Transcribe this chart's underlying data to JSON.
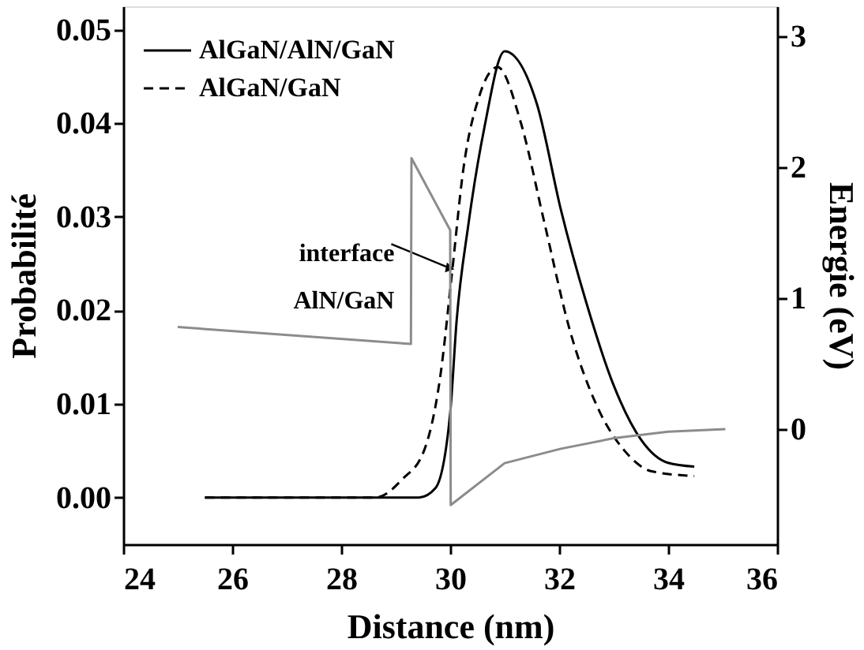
{
  "chart_data": {
    "type": "line",
    "xlabel": "Distance (nm)",
    "ylabel": "Probabilité",
    "y2label": "Energie (eV)",
    "xlim": [
      24,
      36
    ],
    "xticks": [
      24,
      26,
      28,
      30,
      32,
      34,
      36
    ],
    "ylim": [
      -0.005,
      0.0525
    ],
    "yticks": [
      {
        "value": 0,
        "label": "0.00"
      },
      {
        "value": 0.01,
        "label": "0.01"
      },
      {
        "value": 0.02,
        "label": "0.02"
      },
      {
        "value": 0.03,
        "label": "0.03"
      },
      {
        "value": 0.04,
        "label": "0.04"
      },
      {
        "value": 0.05,
        "label": "0.05"
      }
    ],
    "y2lim": [
      -0.88,
      3.23
    ],
    "y2ticks": [
      0,
      1,
      2,
      3
    ],
    "grid": false,
    "legend": "top left",
    "marker": "none",
    "series": [
      {
        "name": "AlGaN/AlN/GaN",
        "color": "#000000",
        "line_style": "solid",
        "x": [
          25.5,
          29.43,
          29.73,
          30.0,
          30.12,
          30.33,
          30.63,
          31.0,
          31.6,
          32.03,
          32.5,
          33.0,
          33.5,
          34.0,
          34.48
        ],
        "values": [
          0.0,
          0.0,
          0.001,
          0.009,
          0.019,
          0.029,
          0.0396,
          0.0477,
          0.0419,
          0.0308,
          0.0208,
          0.012,
          0.0062,
          0.0037,
          0.0033
        ]
      },
      {
        "name": "AlGaN/GaN",
        "color": "#000000",
        "line_style": "dashed",
        "x": [
          25.5,
          28.63,
          29.13,
          29.52,
          29.82,
          30.03,
          30.24,
          30.54,
          30.87,
          31.3,
          31.72,
          32.2,
          32.7,
          33.2,
          33.7,
          34.48
        ],
        "values": [
          0.0,
          0.0,
          0.002,
          0.005,
          0.013,
          0.0238,
          0.035,
          0.043,
          0.046,
          0.04,
          0.0296,
          0.0178,
          0.0097,
          0.005,
          0.0028,
          0.0023
        ]
      },
      {
        "color": "#8c8c8c",
        "axis": "y2",
        "line_style": "solid",
        "x": [
          25.0,
          29.28,
          29.29,
          30.0,
          30.01,
          31.0,
          32.03,
          33.0,
          34.0,
          35.05
        ],
        "values": [
          0.78,
          0.65,
          2.07,
          1.52,
          -0.58,
          -0.26,
          -0.15,
          -0.07,
          -0.02,
          0.0
        ]
      }
    ],
    "annotations": [
      {
        "text": "interface AlN/GaN",
        "x": 30.0,
        "y": 0.0245
      }
    ]
  }
}
